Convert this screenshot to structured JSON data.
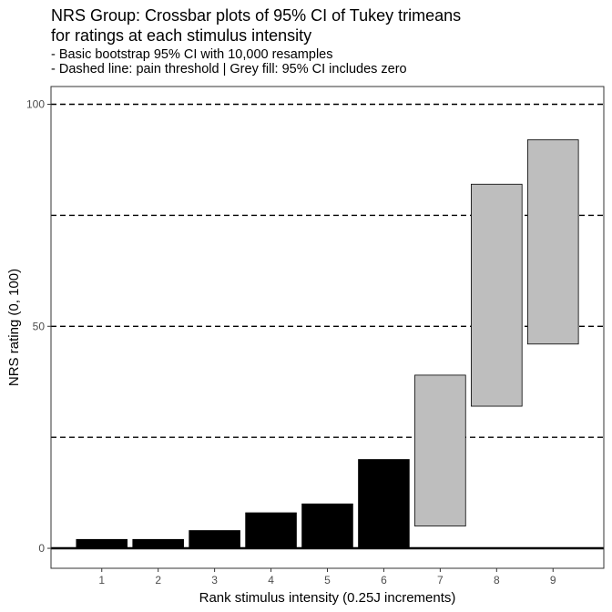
{
  "chart_data": {
    "type": "crossbar",
    "title_lines": [
      "NRS Group: Crossbar plots of 95% CI of Tukey trimeans",
      "for ratings at each stimulus intensity"
    ],
    "subtitle_lines": [
      "- Basic bootstrap 95% CI with 10,000 resamples",
      "- Dashed line: pain threshold | Grey fill: 95% CI includes zero"
    ],
    "xlabel": "Rank stimulus intensity (0.25J increments)",
    "ylabel": "NRS rating (0, 100)",
    "x_ticks": [
      "1",
      "2",
      "3",
      "4",
      "5",
      "6",
      "7",
      "8",
      "9"
    ],
    "y_ticks": [
      0,
      50,
      100
    ],
    "ylim": [
      -4.5,
      104
    ],
    "xlim": [
      0.1,
      9.9
    ],
    "reference_lines": [
      25,
      50,
      75,
      100
    ],
    "intervals": [
      {
        "x": 1,
        "lower": 0,
        "upper": 2,
        "fill": "#000000"
      },
      {
        "x": 2,
        "lower": 0,
        "upper": 2,
        "fill": "#000000"
      },
      {
        "x": 3,
        "lower": 0,
        "upper": 4,
        "fill": "#000000"
      },
      {
        "x": 4,
        "lower": 0,
        "upper": 8,
        "fill": "#000000"
      },
      {
        "x": 5,
        "lower": 0,
        "upper": 10,
        "fill": "#000000"
      },
      {
        "x": 6,
        "lower": 0,
        "upper": 20,
        "fill": "#000000"
      },
      {
        "x": 7,
        "lower": 5,
        "upper": 39,
        "fill": "#bebebe"
      },
      {
        "x": 8,
        "lower": 32,
        "upper": 82,
        "fill": "#bebebe"
      },
      {
        "x": 9,
        "lower": 46,
        "upper": 92,
        "fill": "#bebebe"
      }
    ],
    "grid": false
  }
}
